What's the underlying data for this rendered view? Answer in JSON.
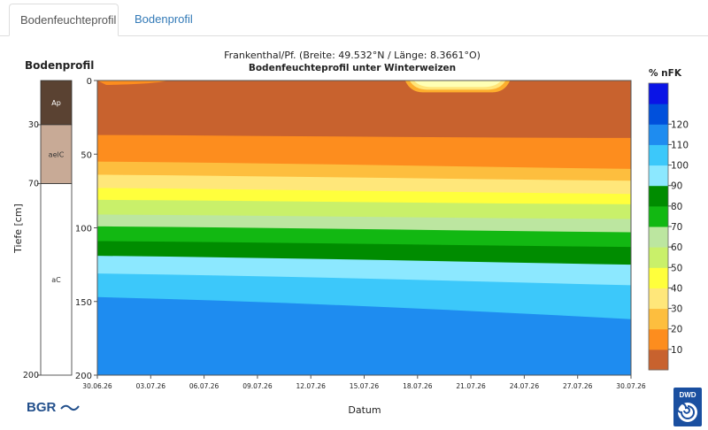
{
  "tabs": [
    {
      "label": "Bodenfeuchteprofil",
      "active": true
    },
    {
      "label": "Bodenprofil",
      "active": false
    }
  ],
  "soil_profile": {
    "title": "Bodenprofil",
    "axis_label": "Tiefe  [cm]",
    "horizons": [
      {
        "name": "Ap",
        "top": 0,
        "bottom": 30,
        "color": "#5a4232",
        "text_color": "#ffffff"
      },
      {
        "name": "aelC",
        "top": 30,
        "bottom": 70,
        "color": "#c8aa96",
        "text_color": "#333333"
      },
      {
        "name": "aC",
        "top": 70,
        "bottom": 200,
        "color": "#ffffff",
        "text_color": "#333333"
      }
    ],
    "depth_ticks": [
      30,
      70,
      200
    ]
  },
  "chart_data": {
    "type": "heatmap",
    "title": "Frankenthal/Pf. (Breite: 49.532°N / Länge: 8.3661°O)",
    "subtitle": "Bodenfeuchteprofil unter Winterweizen",
    "xlabel": "Datum",
    "ylabel": "",
    "x_ticks": [
      "30.06.26",
      "03.07.26",
      "06.07.26",
      "09.07.26",
      "12.07.26",
      "15.07.26",
      "18.07.26",
      "21.07.26",
      "24.07.26",
      "27.07.26",
      "30.07.26"
    ],
    "y_ticks": [
      0,
      50,
      100,
      150,
      200
    ],
    "ylim": [
      200,
      0
    ],
    "days": 30,
    "contour_boundaries": [
      {
        "below_level": 10,
        "start_depth": 37,
        "end_depth": 39
      },
      {
        "below_level": 20,
        "start_depth": 55,
        "end_depth": 60
      },
      {
        "below_level": 30,
        "start_depth": 64,
        "end_depth": 68
      },
      {
        "below_level": 40,
        "start_depth": 73,
        "end_depth": 77
      },
      {
        "below_level": 50,
        "start_depth": 81,
        "end_depth": 84
      },
      {
        "below_level": 60,
        "start_depth": 91,
        "end_depth": 94
      },
      {
        "below_level": 70,
        "start_depth": 99,
        "end_depth": 103
      },
      {
        "below_level": 80,
        "start_depth": 109,
        "end_depth": 113
      },
      {
        "below_level": 90,
        "start_depth": 119,
        "end_depth": 125
      },
      {
        "below_level": 100,
        "start_depth": 131,
        "end_depth": 139
      },
      {
        "below_level": 110,
        "start_depth": 147,
        "end_depth": 162
      }
    ],
    "surface_patch": {
      "start_day": 17.3,
      "end_day": 23.2,
      "depth": 8,
      "colors": [
        "#fdae2d",
        "#ffe57a",
        "#ffffb4"
      ]
    },
    "legend": {
      "title": "% nFK",
      "ticks": [
        10,
        20,
        30,
        40,
        50,
        60,
        70,
        80,
        90,
        100,
        110,
        120
      ],
      "bands": [
        {
          "from": 0,
          "to": 10,
          "color": "#c8622e"
        },
        {
          "from": 10,
          "to": 20,
          "color": "#fd8d1e"
        },
        {
          "from": 20,
          "to": 30,
          "color": "#fdbe3e"
        },
        {
          "from": 30,
          "to": 40,
          "color": "#ffe77a"
        },
        {
          "from": 40,
          "to": 50,
          "color": "#ffff3c"
        },
        {
          "from": 50,
          "to": 60,
          "color": "#c9f06a"
        },
        {
          "from": 60,
          "to": 70,
          "color": "#bce6a0"
        },
        {
          "from": 70,
          "to": 80,
          "color": "#12b812"
        },
        {
          "from": 80,
          "to": 90,
          "color": "#008c00"
        },
        {
          "from": 90,
          "to": 100,
          "color": "#8ce8ff"
        },
        {
          "from": 100,
          "to": 110,
          "color": "#3cc8fa"
        },
        {
          "from": 110,
          "to": 120,
          "color": "#1e8cf0"
        },
        {
          "from": 120,
          "to": 130,
          "color": "#0050dc"
        },
        {
          "from": 130,
          "to": 140,
          "color": "#0a14e6"
        }
      ]
    }
  },
  "logos": {
    "left": "BGR",
    "right": "DWD"
  }
}
